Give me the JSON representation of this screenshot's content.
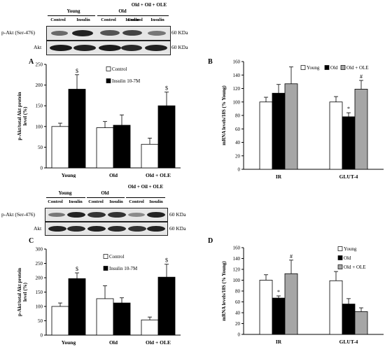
{
  "blot_top": {
    "groups": [
      "Young",
      "Old",
      "Old + Oil + OLE"
    ],
    "conditions": [
      "Control",
      "Insulin",
      "Control",
      "Insulin",
      "Control",
      "Insulin"
    ],
    "rows": [
      {
        "label": "p-Akt (Ser-476)",
        "kda": "60 KDa"
      },
      {
        "label": "Akt",
        "kda": "60 KDa"
      }
    ]
  },
  "blot_bottom": {
    "groups": [
      "Young",
      "Old",
      "Old + Oil + OLE"
    ],
    "conditions": [
      "Control",
      "Insulin",
      "Control",
      "Insulin",
      "Control",
      "Insulin"
    ],
    "rows": [
      {
        "label": "p-Akt (Ser-476)",
        "kda": "60 KDa"
      },
      {
        "label": "Akt",
        "kda": "60 KDa"
      }
    ]
  },
  "colors": {
    "white": "#ffffff",
    "black": "#000000",
    "gray": "#a6a6a6"
  },
  "chart_data": [
    {
      "panel": "A",
      "type": "bar",
      "categories": [
        "Young",
        "Old",
        "Old + OLE"
      ],
      "series": [
        {
          "name": "Control",
          "color": "#ffffff",
          "values": [
            100,
            97,
            57
          ],
          "errors": [
            8,
            15,
            15
          ],
          "marks": [
            "",
            "",
            ""
          ]
        },
        {
          "name": "Insulin 10-7M",
          "color": "#000000",
          "values": [
            190,
            103,
            150
          ],
          "errors": [
            35,
            25,
            33
          ],
          "marks": [
            "$",
            "",
            "$"
          ]
        }
      ],
      "xlabel": "",
      "ylabel": "p-Akt/total Akt protein level (%)",
      "ylim": [
        0,
        250
      ],
      "yticks": [
        0,
        50,
        100,
        150,
        200,
        250
      ],
      "legend": "top-center",
      "grid": false
    },
    {
      "panel": "B",
      "type": "bar",
      "categories": [
        "IR",
        "GLUT-4"
      ],
      "series": [
        {
          "name": "Young",
          "color": "#ffffff",
          "values": [
            100,
            100
          ],
          "errors": [
            7,
            8
          ],
          "marks": [
            "",
            ""
          ]
        },
        {
          "name": "Old",
          "color": "#000000",
          "values": [
            113,
            78
          ],
          "errors": [
            13,
            6
          ],
          "marks": [
            "",
            "*"
          ]
        },
        {
          "name": "Old + OLE",
          "color": "#a6a6a6",
          "values": [
            127,
            119
          ],
          "errors": [
            25,
            13
          ],
          "marks": [
            "",
            "#"
          ]
        }
      ],
      "xlabel": "",
      "ylabel": "mRNA levels/18S (% Young)",
      "ylim": [
        0,
        160
      ],
      "yticks": [
        0,
        20,
        40,
        60,
        80,
        100,
        120,
        140,
        160
      ],
      "legend": "top-right",
      "grid": false
    },
    {
      "panel": "C",
      "type": "bar",
      "categories": [
        "Young",
        "Old",
        "Old + OLE"
      ],
      "series": [
        {
          "name": "Control",
          "color": "#ffffff",
          "values": [
            100,
            127,
            53
          ],
          "errors": [
            12,
            45,
            10
          ],
          "marks": [
            "",
            "",
            ""
          ]
        },
        {
          "name": "Insulin 10-7M",
          "color": "#000000",
          "values": [
            197,
            112,
            202
          ],
          "errors": [
            20,
            18,
            45
          ],
          "marks": [
            "$",
            "",
            "$"
          ]
        }
      ],
      "xlabel": "",
      "ylabel": "p-Akt/total Akt protein level (%)",
      "ylim": [
        0,
        300
      ],
      "yticks": [
        0,
        50,
        100,
        150,
        200,
        250,
        300
      ],
      "legend": "top-center",
      "grid": false
    },
    {
      "panel": "D",
      "type": "bar",
      "categories": [
        "IR",
        "GLUT-4"
      ],
      "series": [
        {
          "name": "Young",
          "color": "#ffffff",
          "values": [
            100,
            99
          ],
          "errors": [
            10,
            17
          ],
          "marks": [
            "",
            ""
          ]
        },
        {
          "name": "Old",
          "color": "#000000",
          "values": [
            67,
            56
          ],
          "errors": [
            4,
            10
          ],
          "marks": [
            "*",
            ""
          ]
        },
        {
          "name": "Old + OLE",
          "color": "#a6a6a6",
          "values": [
            112,
            42
          ],
          "errors": [
            25,
            7
          ],
          "marks": [
            "#",
            ""
          ]
        }
      ],
      "xlabel": "",
      "ylabel": "mRNA levels/18S (% Young)",
      "ylim": [
        0,
        160
      ],
      "yticks": [
        0,
        20,
        40,
        60,
        80,
        100,
        120,
        140,
        160
      ],
      "legend": "right",
      "grid": false
    }
  ]
}
